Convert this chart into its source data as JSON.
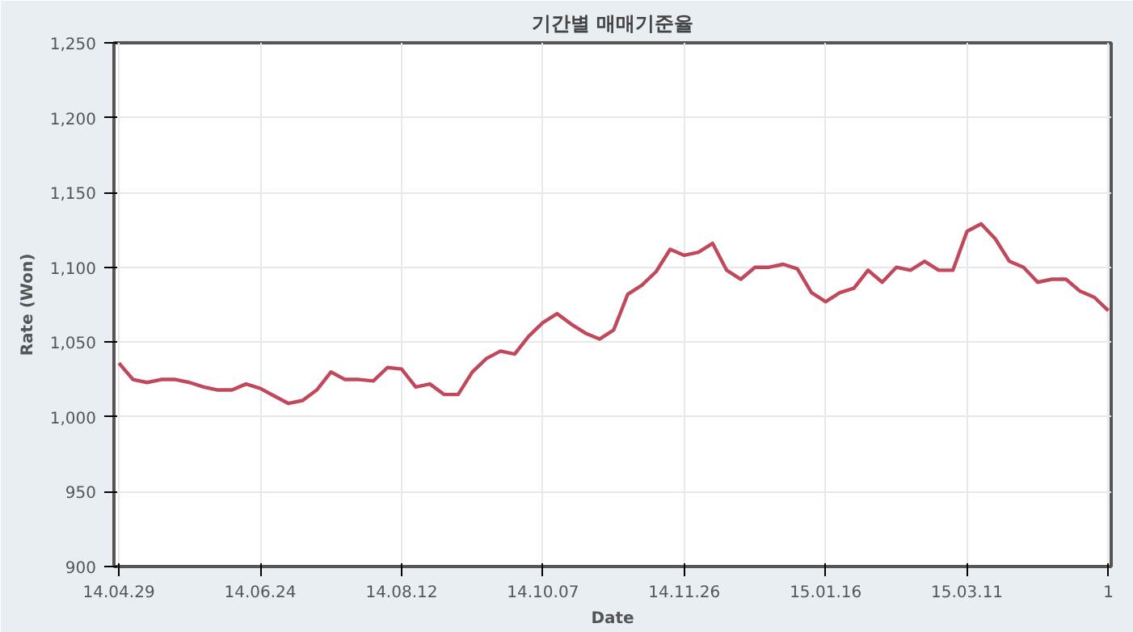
{
  "chart_data": {
    "type": "line",
    "title": "기간별 매매기준율",
    "xlabel": "Date",
    "ylabel": "Rate (Won)",
    "categories": [
      "14.04.29",
      null,
      null,
      null,
      null,
      null,
      null,
      null,
      null,
      null,
      "14.06.24",
      null,
      null,
      null,
      null,
      null,
      null,
      null,
      null,
      null,
      "14.08.12",
      null,
      null,
      null,
      null,
      null,
      null,
      null,
      null,
      null,
      "14.10.07",
      null,
      null,
      null,
      null,
      null,
      null,
      null,
      null,
      null,
      "14.11.26",
      null,
      null,
      null,
      null,
      null,
      null,
      null,
      null,
      null,
      "15.01.16",
      null,
      null,
      null,
      null,
      null,
      null,
      null,
      null,
      null,
      "15.03.11",
      null,
      null,
      null,
      null,
      null,
      null,
      null,
      null,
      null,
      "1"
    ],
    "series": [
      {
        "color": "#c0485a",
        "values": [
          1036,
          1025,
          1023,
          1025,
          1025,
          1023,
          1020,
          1018,
          1018,
          1022,
          1019,
          1014,
          1009,
          1011,
          1018,
          1030,
          1025,
          1025,
          1024,
          1033,
          1032,
          1020,
          1022,
          1015,
          1015,
          1030,
          1039,
          1044,
          1042,
          1054,
          1063,
          1069,
          1062,
          1056,
          1052,
          1058,
          1082,
          1088,
          1097,
          1112,
          1108,
          1110,
          1116,
          1098,
          1092,
          1100,
          1100,
          1102,
          1099,
          1083,
          1077,
          1083,
          1086,
          1098,
          1090,
          1100,
          1098,
          1104,
          1098,
          1098,
          1124,
          1129,
          1119,
          1104,
          1100,
          1090,
          1092,
          1092,
          1084,
          1080,
          1071
        ]
      }
    ],
    "ylim": [
      900,
      1250
    ],
    "yticks": [
      {
        "value": 900,
        "label": "900"
      },
      {
        "value": 950,
        "label": "950"
      },
      {
        "value": 1000,
        "label": "1,000"
      },
      {
        "value": 1050,
        "label": "1,050"
      },
      {
        "value": 1100,
        "label": "1,100"
      },
      {
        "value": 1150,
        "label": "1,150"
      },
      {
        "value": 1200,
        "label": "1,200"
      },
      {
        "value": 1250,
        "label": "1,250"
      }
    ],
    "grid": true,
    "marker": "none",
    "line_style": "solid"
  }
}
